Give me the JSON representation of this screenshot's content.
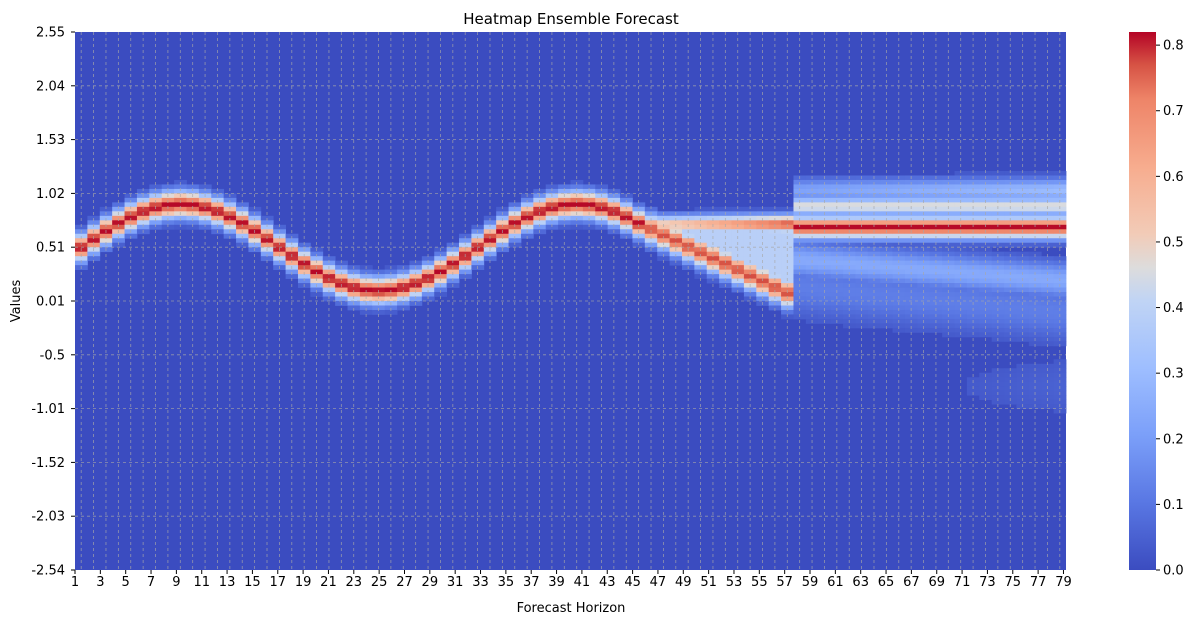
{
  "chart_data": {
    "type": "heatmap",
    "title": "Heatmap Ensemble Forecast",
    "xlabel": "Forecast Horizon",
    "ylabel": "Values",
    "x_tick_labels": [
      "1",
      "3",
      "5",
      "7",
      "9",
      "11",
      "13",
      "15",
      "17",
      "19",
      "21",
      "23",
      "25",
      "27",
      "29",
      "31",
      "33",
      "35",
      "37",
      "39",
      "41",
      "43",
      "45",
      "47",
      "49",
      "51",
      "53",
      "55",
      "57",
      "59",
      "61",
      "63",
      "65",
      "67",
      "69",
      "71",
      "73",
      "75",
      "77",
      "79"
    ],
    "y_tick_labels": [
      "2.55",
      "2.04",
      "1.53",
      "1.02",
      "0.51",
      "0.01",
      "-0.5",
      "-1.01",
      "-1.52",
      "-2.03",
      "-2.54"
    ],
    "x_range": [
      1,
      80
    ],
    "y_range": [
      -2.54,
      2.55
    ],
    "colorbar": {
      "ticks": [
        "0.0",
        "0.1",
        "0.2",
        "0.3",
        "0.4",
        "0.5",
        "0.6",
        "0.7",
        "0.8"
      ],
      "range": [
        0,
        0.82
      ],
      "colormap": "coolwarm",
      "low_color": "#3b4cc0",
      "mid_color": "#dddddd",
      "high_color": "#b40426"
    },
    "grid": true,
    "description_series": {
      "name": "",
      "x": [
        1,
        5,
        9,
        13,
        17,
        21,
        25,
        29,
        33,
        37,
        41,
        45,
        49,
        53,
        57,
        61,
        65,
        69,
        73,
        77,
        80
      ],
      "center_value": [
        0.51,
        0.8,
        0.9,
        0.78,
        0.5,
        0.15,
        0.02,
        0.15,
        0.5,
        0.8,
        0.9,
        0.78,
        0.55,
        0.3,
        0.1,
        0.7,
        0.72,
        0.72,
        0.7,
        0.68,
        0.68
      ]
    }
  }
}
